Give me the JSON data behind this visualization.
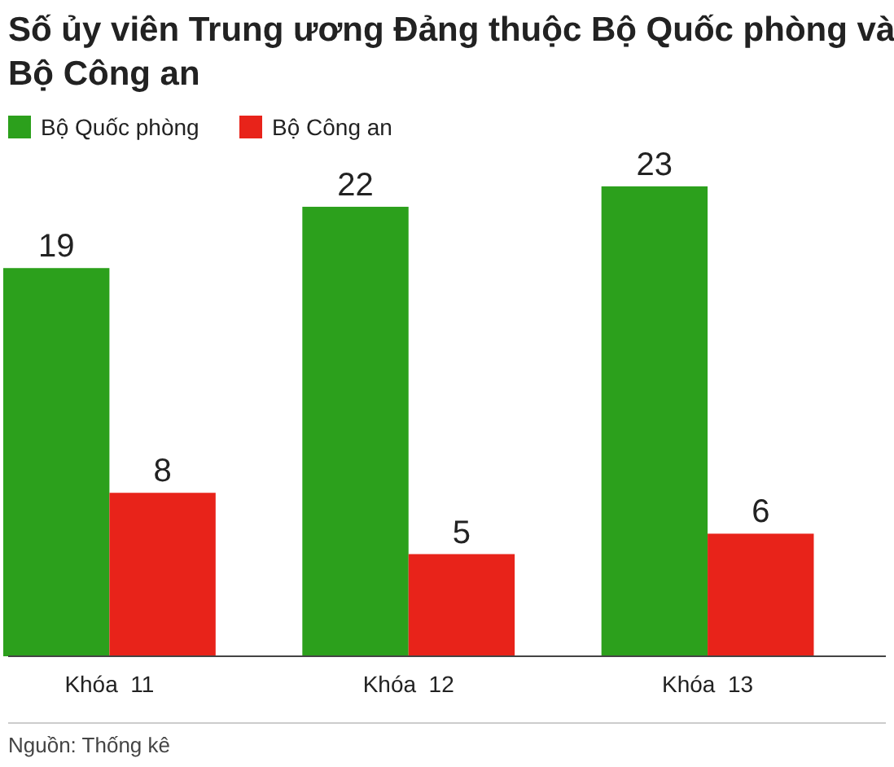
{
  "chart_data": {
    "type": "bar",
    "title": "Số ủy viên Trung ương Đảng thuộc Bộ Quốc phòng và Bộ Công an",
    "categories": [
      "Khóa  11",
      "Khóa  12",
      "Khóa  13"
    ],
    "series": [
      {
        "name": "Bộ Quốc phòng",
        "color": "#2ca01c",
        "values": [
          19,
          22,
          23
        ]
      },
      {
        "name": "Bộ Công an",
        "color": "#e8231a",
        "values": [
          8,
          5,
          6
        ]
      }
    ],
    "data_labels": true,
    "legend": "top left",
    "annotations": [
      "Nguồn: Thống kê"
    ]
  }
}
